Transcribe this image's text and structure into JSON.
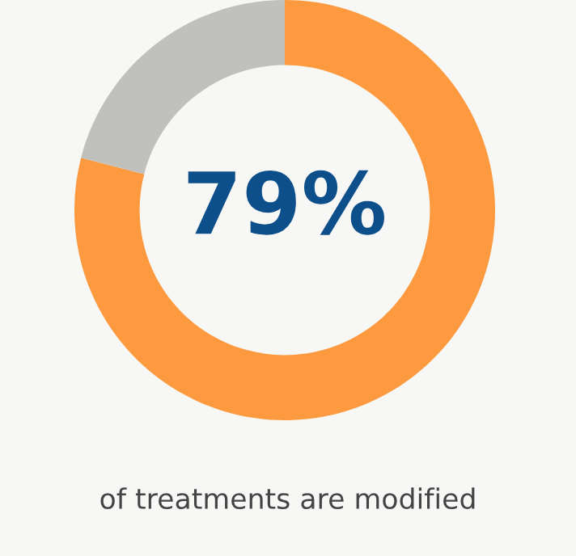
{
  "chart_data": {
    "type": "donut",
    "categories": [
      null,
      null
    ],
    "values": [
      79,
      21
    ],
    "colors": [
      "#fd9a40",
      "#c0c0bd"
    ],
    "value_labels": [
      "79%",
      null
    ],
    "annotations": [
      "of treatments are modified"
    ]
  }
}
